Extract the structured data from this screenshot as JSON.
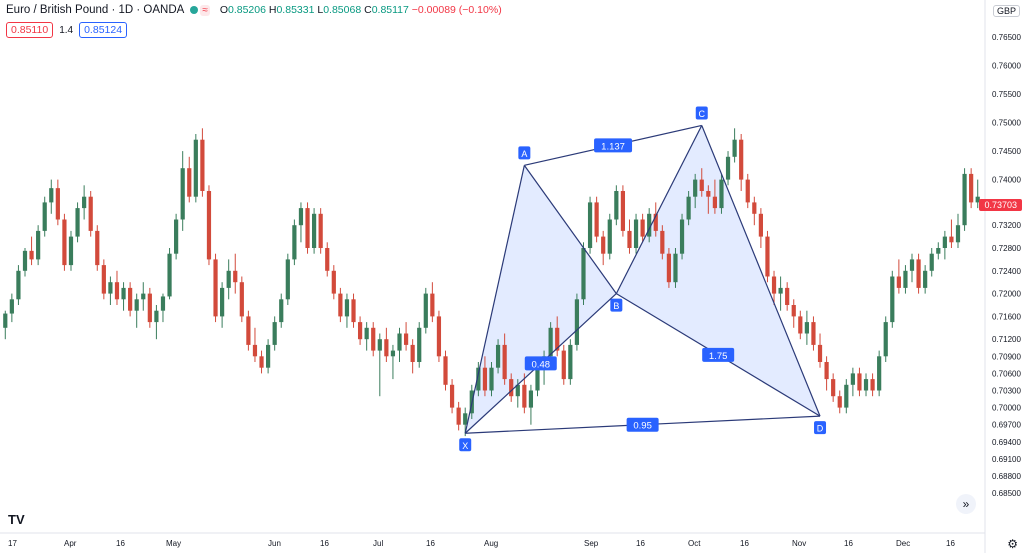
{
  "header": {
    "title": "Euro / British Pound · 1D · OANDA",
    "ohlc": {
      "open_label": "O",
      "open": "0.85206",
      "high_label": "H",
      "high": "0.85331",
      "low_label": "L",
      "low": "0.85068",
      "close_label": "C",
      "close": "0.85117",
      "change": "−0.00089 (−0.10%)"
    },
    "sell_price": "0.85110",
    "spread": "1.4",
    "buy_price": "0.85124"
  },
  "currency": "GBP",
  "last_price_tag": "0.73703",
  "logo_text": "TV",
  "chart_data": {
    "type": "candlestick",
    "y_axis": {
      "min": 0.678,
      "max": 0.768,
      "ticks": [
        "0.76500",
        "0.76000",
        "0.75500",
        "0.75000",
        "0.74500",
        "0.74000",
        "0.73600",
        "0.73200",
        "0.72800",
        "0.72400",
        "0.72000",
        "0.71600",
        "0.71200",
        "0.70900",
        "0.70600",
        "0.70300",
        "0.70000",
        "0.69700",
        "0.69400",
        "0.69100",
        "0.68800",
        "0.68500"
      ]
    },
    "x_axis": {
      "labels": [
        "17",
        "Apr",
        "16",
        "May",
        "Jun",
        "16",
        "Jul",
        "16",
        "Aug",
        "Sep",
        "16",
        "Oct",
        "16",
        "Nov",
        "16",
        "Dec",
        "16"
      ]
    },
    "candles": [
      [
        0.714,
        0.717,
        0.712,
        0.7165
      ],
      [
        0.7165,
        0.72,
        0.715,
        0.719
      ],
      [
        0.719,
        0.725,
        0.718,
        0.724
      ],
      [
        0.724,
        0.728,
        0.723,
        0.7275
      ],
      [
        0.7275,
        0.73,
        0.725,
        0.726
      ],
      [
        0.726,
        0.732,
        0.725,
        0.731
      ],
      [
        0.731,
        0.737,
        0.73,
        0.736
      ],
      [
        0.736,
        0.74,
        0.734,
        0.7385
      ],
      [
        0.7385,
        0.74,
        0.732,
        0.733
      ],
      [
        0.733,
        0.734,
        0.724,
        0.725
      ],
      [
        0.725,
        0.731,
        0.724,
        0.73
      ],
      [
        0.73,
        0.736,
        0.729,
        0.735
      ],
      [
        0.735,
        0.739,
        0.733,
        0.737
      ],
      [
        0.737,
        0.738,
        0.73,
        0.731
      ],
      [
        0.731,
        0.732,
        0.724,
        0.725
      ],
      [
        0.725,
        0.726,
        0.719,
        0.72
      ],
      [
        0.72,
        0.723,
        0.718,
        0.722
      ],
      [
        0.722,
        0.724,
        0.718,
        0.719
      ],
      [
        0.719,
        0.722,
        0.717,
        0.721
      ],
      [
        0.721,
        0.722,
        0.716,
        0.717
      ],
      [
        0.717,
        0.72,
        0.714,
        0.719
      ],
      [
        0.719,
        0.722,
        0.717,
        0.72
      ],
      [
        0.72,
        0.721,
        0.714,
        0.715
      ],
      [
        0.715,
        0.718,
        0.712,
        0.717
      ],
      [
        0.717,
        0.72,
        0.715,
        0.7195
      ],
      [
        0.7195,
        0.728,
        0.719,
        0.727
      ],
      [
        0.727,
        0.734,
        0.726,
        0.733
      ],
      [
        0.733,
        0.745,
        0.731,
        0.742
      ],
      [
        0.742,
        0.744,
        0.736,
        0.737
      ],
      [
        0.737,
        0.748,
        0.736,
        0.747
      ],
      [
        0.747,
        0.749,
        0.737,
        0.738
      ],
      [
        0.738,
        0.739,
        0.725,
        0.726
      ],
      [
        0.726,
        0.727,
        0.715,
        0.716
      ],
      [
        0.716,
        0.722,
        0.714,
        0.721
      ],
      [
        0.721,
        0.726,
        0.719,
        0.724
      ],
      [
        0.724,
        0.727,
        0.72,
        0.722
      ],
      [
        0.722,
        0.723,
        0.715,
        0.716
      ],
      [
        0.716,
        0.717,
        0.71,
        0.711
      ],
      [
        0.711,
        0.714,
        0.708,
        0.709
      ],
      [
        0.709,
        0.71,
        0.706,
        0.707
      ],
      [
        0.707,
        0.712,
        0.706,
        0.711
      ],
      [
        0.711,
        0.716,
        0.71,
        0.715
      ],
      [
        0.715,
        0.72,
        0.714,
        0.719
      ],
      [
        0.719,
        0.727,
        0.718,
        0.726
      ],
      [
        0.726,
        0.733,
        0.725,
        0.732
      ],
      [
        0.732,
        0.736,
        0.729,
        0.735
      ],
      [
        0.735,
        0.736,
        0.727,
        0.728
      ],
      [
        0.728,
        0.735,
        0.727,
        0.734
      ],
      [
        0.734,
        0.735,
        0.727,
        0.728
      ],
      [
        0.728,
        0.729,
        0.723,
        0.724
      ],
      [
        0.724,
        0.725,
        0.719,
        0.72
      ],
      [
        0.72,
        0.721,
        0.715,
        0.716
      ],
      [
        0.716,
        0.72,
        0.714,
        0.719
      ],
      [
        0.719,
        0.72,
        0.714,
        0.715
      ],
      [
        0.715,
        0.716,
        0.711,
        0.712
      ],
      [
        0.712,
        0.715,
        0.71,
        0.714
      ],
      [
        0.714,
        0.715,
        0.709,
        0.71
      ],
      [
        0.71,
        0.713,
        0.702,
        0.712
      ],
      [
        0.712,
        0.714,
        0.708,
        0.709
      ],
      [
        0.709,
        0.711,
        0.705,
        0.71
      ],
      [
        0.71,
        0.714,
        0.708,
        0.713
      ],
      [
        0.713,
        0.715,
        0.71,
        0.711
      ],
      [
        0.711,
        0.712,
        0.706,
        0.708
      ],
      [
        0.708,
        0.715,
        0.707,
        0.714
      ],
      [
        0.714,
        0.721,
        0.713,
        0.72
      ],
      [
        0.72,
        0.722,
        0.715,
        0.716
      ],
      [
        0.716,
        0.717,
        0.708,
        0.709
      ],
      [
        0.709,
        0.71,
        0.703,
        0.704
      ],
      [
        0.704,
        0.705,
        0.699,
        0.7
      ],
      [
        0.7,
        0.701,
        0.696,
        0.697
      ],
      [
        0.697,
        0.7,
        0.695,
        0.699
      ],
      [
        0.699,
        0.704,
        0.698,
        0.703
      ],
      [
        0.703,
        0.708,
        0.702,
        0.707
      ],
      [
        0.707,
        0.709,
        0.702,
        0.703
      ],
      [
        0.703,
        0.708,
        0.702,
        0.707
      ],
      [
        0.707,
        0.712,
        0.706,
        0.711
      ],
      [
        0.711,
        0.713,
        0.704,
        0.705
      ],
      [
        0.705,
        0.706,
        0.701,
        0.702
      ],
      [
        0.702,
        0.705,
        0.7,
        0.704
      ],
      [
        0.704,
        0.706,
        0.699,
        0.7
      ],
      [
        0.7,
        0.704,
        0.697,
        0.703
      ],
      [
        0.703,
        0.708,
        0.702,
        0.707
      ],
      [
        0.707,
        0.71,
        0.704,
        0.709
      ],
      [
        0.709,
        0.715,
        0.708,
        0.714
      ],
      [
        0.714,
        0.716,
        0.709,
        0.71
      ],
      [
        0.71,
        0.711,
        0.704,
        0.705
      ],
      [
        0.705,
        0.712,
        0.704,
        0.711
      ],
      [
        0.711,
        0.72,
        0.71,
        0.719
      ],
      [
        0.719,
        0.729,
        0.718,
        0.728
      ],
      [
        0.728,
        0.737,
        0.727,
        0.736
      ],
      [
        0.736,
        0.737,
        0.729,
        0.73
      ],
      [
        0.73,
        0.731,
        0.725,
        0.727
      ],
      [
        0.727,
        0.734,
        0.726,
        0.733
      ],
      [
        0.733,
        0.739,
        0.732,
        0.738
      ],
      [
        0.738,
        0.739,
        0.73,
        0.731
      ],
      [
        0.731,
        0.733,
        0.727,
        0.728
      ],
      [
        0.728,
        0.734,
        0.727,
        0.733
      ],
      [
        0.733,
        0.734,
        0.729,
        0.73
      ],
      [
        0.73,
        0.735,
        0.729,
        0.734
      ],
      [
        0.734,
        0.736,
        0.73,
        0.731
      ],
      [
        0.731,
        0.732,
        0.726,
        0.727
      ],
      [
        0.727,
        0.728,
        0.721,
        0.722
      ],
      [
        0.722,
        0.728,
        0.721,
        0.727
      ],
      [
        0.727,
        0.734,
        0.726,
        0.733
      ],
      [
        0.733,
        0.738,
        0.732,
        0.737
      ],
      [
        0.737,
        0.741,
        0.735,
        0.74
      ],
      [
        0.74,
        0.742,
        0.737,
        0.738
      ],
      [
        0.738,
        0.739,
        0.734,
        0.737
      ],
      [
        0.737,
        0.74,
        0.734,
        0.735
      ],
      [
        0.735,
        0.741,
        0.734,
        0.74
      ],
      [
        0.74,
        0.745,
        0.739,
        0.744
      ],
      [
        0.744,
        0.749,
        0.743,
        0.747
      ],
      [
        0.747,
        0.748,
        0.738,
        0.74
      ],
      [
        0.74,
        0.741,
        0.735,
        0.736
      ],
      [
        0.736,
        0.737,
        0.732,
        0.734
      ],
      [
        0.734,
        0.735,
        0.728,
        0.73
      ],
      [
        0.73,
        0.731,
        0.722,
        0.723
      ],
      [
        0.723,
        0.724,
        0.718,
        0.72
      ],
      [
        0.72,
        0.723,
        0.717,
        0.721
      ],
      [
        0.721,
        0.722,
        0.717,
        0.718
      ],
      [
        0.718,
        0.719,
        0.714,
        0.716
      ],
      [
        0.716,
        0.717,
        0.712,
        0.713
      ],
      [
        0.713,
        0.717,
        0.711,
        0.715
      ],
      [
        0.715,
        0.716,
        0.71,
        0.711
      ],
      [
        0.711,
        0.713,
        0.707,
        0.708
      ],
      [
        0.708,
        0.709,
        0.703,
        0.705
      ],
      [
        0.705,
        0.706,
        0.701,
        0.702
      ],
      [
        0.702,
        0.703,
        0.699,
        0.7
      ],
      [
        0.7,
        0.705,
        0.699,
        0.704
      ],
      [
        0.704,
        0.707,
        0.702,
        0.706
      ],
      [
        0.706,
        0.707,
        0.702,
        0.703
      ],
      [
        0.703,
        0.706,
        0.702,
        0.705
      ],
      [
        0.705,
        0.706,
        0.702,
        0.703
      ],
      [
        0.703,
        0.71,
        0.702,
        0.709
      ],
      [
        0.709,
        0.716,
        0.708,
        0.715
      ],
      [
        0.715,
        0.724,
        0.714,
        0.723
      ],
      [
        0.723,
        0.726,
        0.72,
        0.721
      ],
      [
        0.721,
        0.725,
        0.72,
        0.724
      ],
      [
        0.724,
        0.727,
        0.722,
        0.726
      ],
      [
        0.726,
        0.727,
        0.72,
        0.721
      ],
      [
        0.721,
        0.725,
        0.72,
        0.724
      ],
      [
        0.724,
        0.728,
        0.723,
        0.727
      ],
      [
        0.727,
        0.729,
        0.726,
        0.728
      ],
      [
        0.728,
        0.731,
        0.726,
        0.73
      ],
      [
        0.73,
        0.733,
        0.728,
        0.729
      ],
      [
        0.729,
        0.734,
        0.728,
        0.732
      ],
      [
        0.732,
        0.742,
        0.731,
        0.741
      ],
      [
        0.741,
        0.742,
        0.735,
        0.736
      ],
      [
        0.736,
        0.74,
        0.735,
        0.737
      ]
    ],
    "harmonic_pattern": {
      "type": "butterfly",
      "points": [
        {
          "label": "X",
          "x_index": 70,
          "price": 0.6955
        },
        {
          "label": "A",
          "x_index": 79,
          "price": 0.7425
        },
        {
          "label": "B",
          "x_index": 93,
          "price": 0.72
        },
        {
          "label": "C",
          "x_index": 106,
          "price": 0.7495
        },
        {
          "label": "D",
          "x_index": 124,
          "price": 0.6985
        }
      ],
      "ratios": [
        {
          "value": "0.48",
          "between": "XB"
        },
        {
          "value": "1.137",
          "between": "AC"
        },
        {
          "value": "1.75",
          "between": "BD"
        },
        {
          "value": "0.95",
          "between": "XD"
        }
      ]
    }
  }
}
